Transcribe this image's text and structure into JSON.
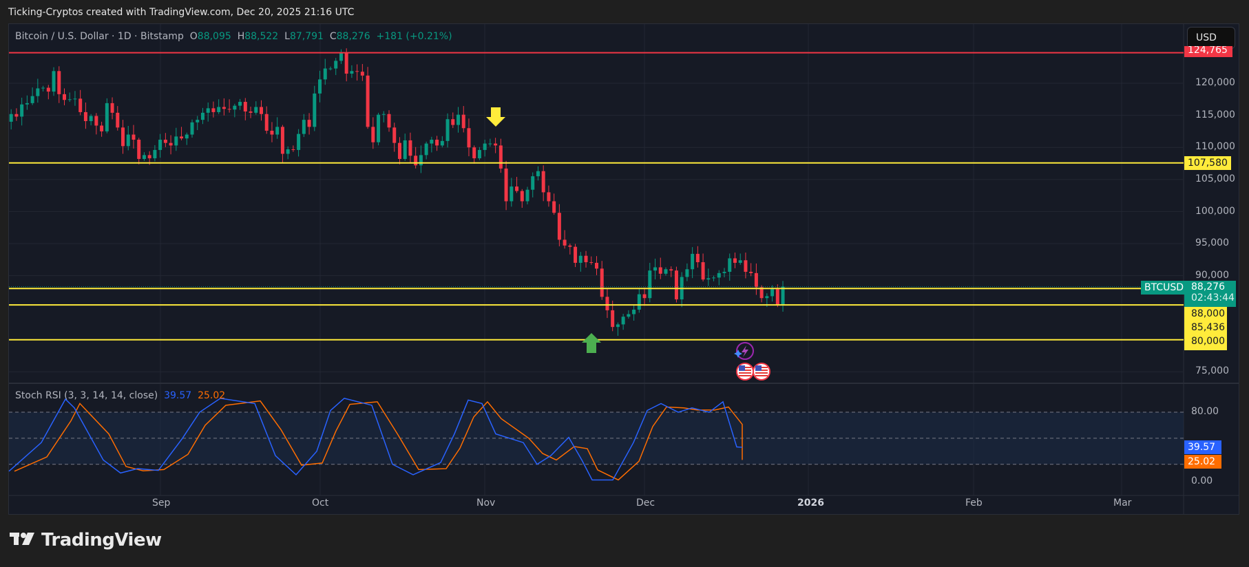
{
  "caption": "Ticking-Cryptos created with TradingView.com, Dec 20, 2025 21:16 UTC",
  "header": {
    "symbol_desc": "Bitcoin / U.S. Dollar · 1D · Bitstamp",
    "open_label": "O",
    "open": "88,095",
    "high_label": "H",
    "high": "88,522",
    "low_label": "L",
    "low": "87,791",
    "close_label": "C",
    "close": "88,276",
    "change": "+181 (+0.21%)"
  },
  "currency_button": "USD",
  "price_axis": {
    "ticks": [
      "120,000",
      "115,000",
      "110,000",
      "105,000",
      "100,000",
      "95,000",
      "90,000",
      "75,000"
    ],
    "tags": {
      "resistance_top": "124,765",
      "level_107580": "107,580",
      "symbol": "BTCUSD",
      "last_price": "88,276",
      "countdown": "02:43:44",
      "level_88000": "88,000",
      "level_85436": "85,436",
      "level_80000": "80,000"
    }
  },
  "indicator": {
    "name": "Stoch RSI (3, 3, 14, 14, close)",
    "k_value": "39.57",
    "d_value": "25.02",
    "axis_ticks": [
      "80.00",
      "0.00"
    ]
  },
  "time_axis": [
    "Sep",
    "Oct",
    "Nov",
    "Dec",
    "2026",
    "Feb",
    "Mar"
  ],
  "footer_brand": "TradingView",
  "colors": {
    "up": "#089981",
    "down": "#f23645",
    "level": "#ffeb3b",
    "resistance": "#f23645",
    "k_line": "#2962ff",
    "d_line": "#ff6d00",
    "arrow_down": "#ffeb3b",
    "arrow_up": "#4caf50"
  },
  "chart_data": [
    {
      "type": "candlestick",
      "title": "Bitcoin / U.S. Dollar · 1D · Bitstamp",
      "ylabel": "USD",
      "ylim": [
        73000,
        126000
      ],
      "x_ticks": [
        "Sep",
        "Oct",
        "Nov",
        "Dec",
        "2026",
        "Feb",
        "Mar"
      ],
      "last": {
        "open": 88095,
        "high": 88522,
        "low": 87791,
        "close": 88276,
        "change": 181,
        "change_pct": 0.21
      },
      "horizontal_levels": [
        {
          "price": 124765,
          "color": "red",
          "label": "124,765"
        },
        {
          "price": 107580,
          "color": "yellow",
          "label": "107,580"
        },
        {
          "price": 88000,
          "color": "yellow",
          "label": "88,000"
        },
        {
          "price": 85436,
          "color": "yellow",
          "label": "85,436"
        },
        {
          "price": 80000,
          "color": "yellow",
          "label": "80,000"
        }
      ],
      "annotations": [
        {
          "type": "arrow-down",
          "color": "yellow",
          "date": "Nov 3",
          "note": "above breakdown candle"
        },
        {
          "type": "arrow-up",
          "color": "green",
          "date": "Nov 21",
          "note": "below low ~80,600"
        }
      ],
      "approx_closes_from_aug1": [
        115500,
        114200,
        114000,
        115200,
        114800,
        116700,
        116900,
        118000,
        119200,
        119300,
        118700,
        121900,
        118300,
        117400,
        117500,
        117600,
        115500,
        114100,
        114900,
        113400,
        112500,
        116900,
        115400,
        113100,
        110200,
        112000,
        111200,
        108200,
        108800,
        108300,
        109600,
        111200,
        110700,
        110300,
        111700,
        111400,
        112000,
        113900,
        114300,
        115400,
        116100,
        115500,
        116300,
        116000,
        115900,
        116500,
        117100,
        115600,
        115400,
        116300,
        115200,
        112600,
        112000,
        113200,
        109000,
        109700,
        109600,
        112100,
        114300,
        113200,
        118400,
        120600,
        122300,
        122300,
        123500,
        124700,
        121500,
        121900,
        121800,
        121200,
        113200,
        110800,
        115100,
        115200,
        113100,
        110700,
        108200,
        111100,
        108700,
        107200,
        108800,
        110600,
        111200,
        110300,
        111000,
        114400,
        113500,
        115100,
        113000,
        110000,
        108300,
        109600,
        110600,
        110600,
        110300,
        106700,
        101600,
        103900,
        103200,
        101600,
        103400,
        105500,
        106300,
        103000,
        101600,
        99800,
        95600,
        94700,
        94500,
        92000,
        93100,
        92100,
        92000,
        91100,
        86700,
        84600,
        82000,
        82400,
        83600,
        84000,
        84700,
        87100,
        86500,
        90800,
        91300,
        90300,
        91000,
        90800,
        86300,
        89800,
        91000,
        93400,
        92100,
        89400,
        89600,
        89700,
        90400,
        90600,
        92700,
        92000,
        92400,
        90600,
        90400,
        88200,
        86500,
        86800,
        87900,
        85400,
        88276
      ]
    },
    {
      "type": "line",
      "title": "Stoch RSI (3, 3, 14, 14, close)",
      "ylim": [
        0,
        100
      ],
      "bands": [
        20,
        50,
        80
      ],
      "series": [
        {
          "name": "K",
          "last": 39.57
        },
        {
          "name": "D",
          "last": 25.02
        }
      ]
    }
  ]
}
